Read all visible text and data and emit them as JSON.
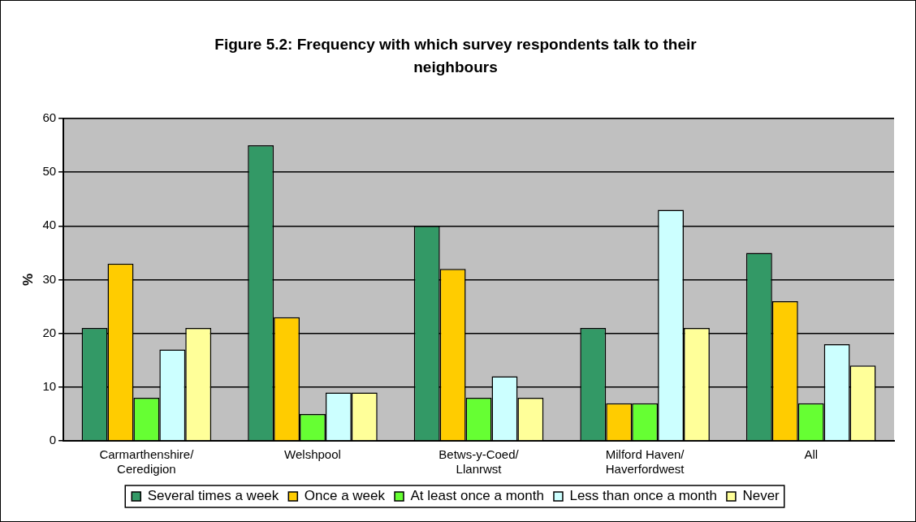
{
  "chart_data": {
    "type": "bar",
    "title": "Figure 5.2: Frequency with which survey respondents talk to their neighbours",
    "ylabel": "%",
    "categories": [
      "Carmarthenshire/\nCeredigion",
      "Welshpool",
      "Betws-y-Coed/\nLlanrwst",
      "Milford Haven/\nHaverfordwest",
      "All"
    ],
    "series": [
      {
        "name": "Several times a week",
        "color": "#339966",
        "values": [
          21,
          55,
          40,
          21,
          35
        ]
      },
      {
        "name": "Once a week",
        "color": "#ffcc00",
        "values": [
          33,
          23,
          32,
          7,
          26
        ]
      },
      {
        "name": "At least once a month",
        "color": "#66ff33",
        "values": [
          8,
          5,
          8,
          7,
          7
        ]
      },
      {
        "name": "Less than once a month",
        "color": "#ccffff",
        "values": [
          17,
          9,
          12,
          43,
          18
        ]
      },
      {
        "name": "Never",
        "color": "#ffff99",
        "values": [
          21,
          9,
          8,
          21,
          14
        ]
      }
    ],
    "ylim": [
      0,
      60
    ],
    "yticks": [
      0,
      10,
      20,
      30,
      40,
      50,
      60
    ],
    "grid": "y",
    "legend": "bottom"
  }
}
